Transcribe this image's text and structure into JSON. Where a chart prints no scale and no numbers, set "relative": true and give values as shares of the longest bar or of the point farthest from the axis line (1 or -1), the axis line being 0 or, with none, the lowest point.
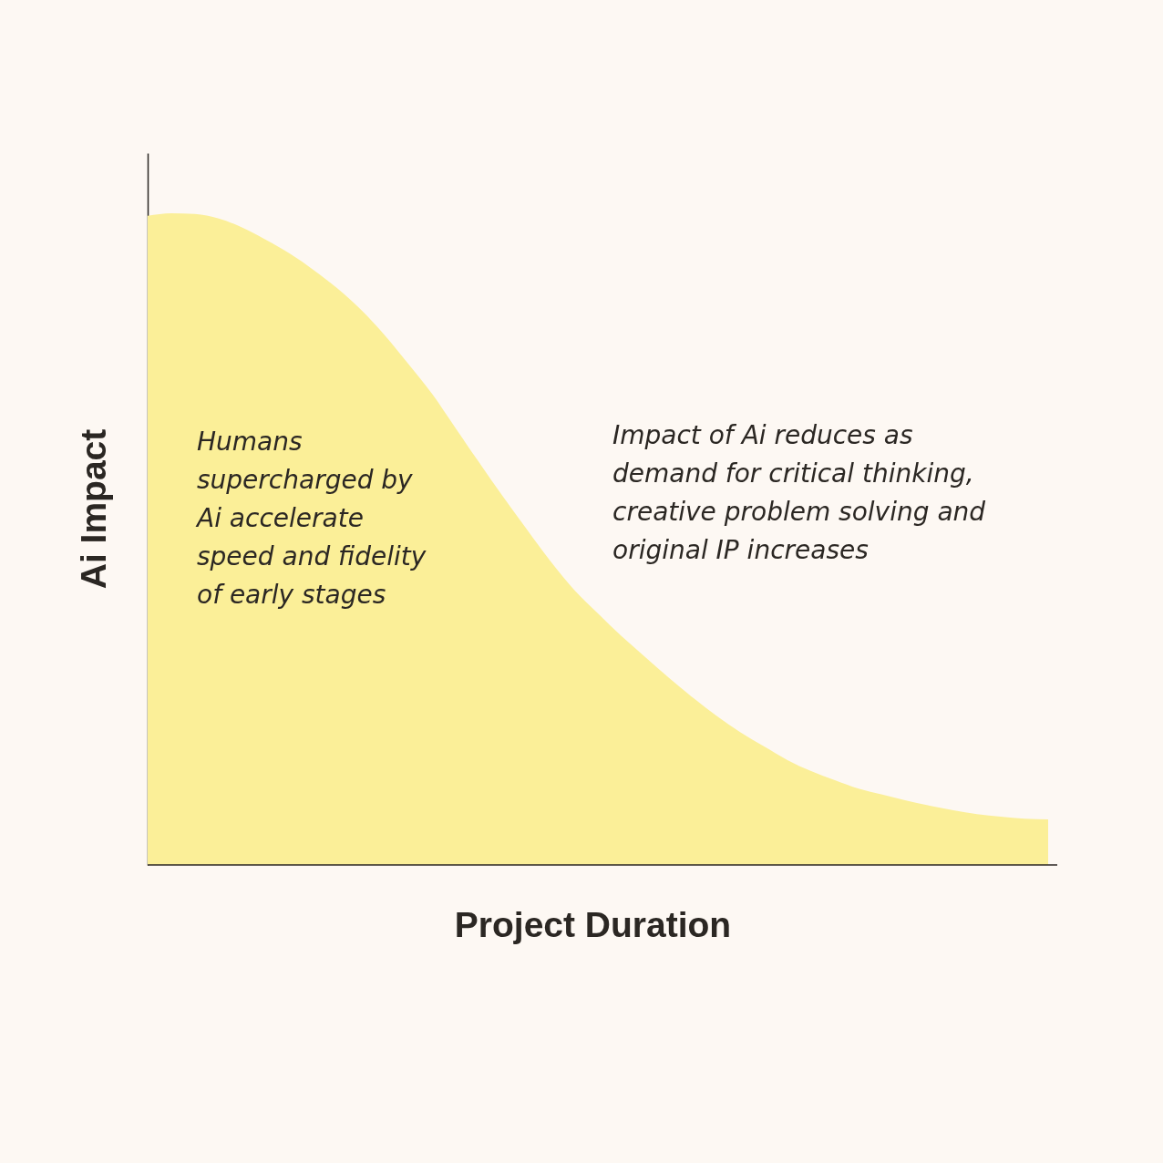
{
  "chart_data": {
    "type": "area",
    "relative": true,
    "xlabel": "Project Duration",
    "ylabel": "Ai Impact",
    "categories": [
      null,
      null,
      null,
      null,
      null,
      null,
      null,
      null,
      null,
      null,
      null,
      null,
      null,
      null,
      null,
      null,
      null,
      null,
      null,
      null,
      null,
      null,
      null,
      null,
      null,
      null,
      null,
      null,
      null,
      null,
      null,
      null,
      null,
      null,
      null,
      null,
      null,
      null,
      null
    ],
    "series": [
      {
        "color": "#fbef98",
        "values": [
          0.996,
          1.0,
          0.999,
          0.992,
          0.978,
          0.959,
          0.938,
          0.913,
          0.885,
          0.852,
          0.813,
          0.769,
          0.723,
          0.67,
          0.617,
          0.565,
          0.515,
          0.466,
          0.422,
          0.386,
          0.351,
          0.319,
          0.287,
          0.257,
          0.229,
          0.204,
          0.182,
          0.161,
          0.144,
          0.13,
          0.117,
          0.108,
          0.099,
          0.091,
          0.084,
          0.078,
          0.074,
          0.071,
          0.07
        ]
      }
    ],
    "annotations": [
      "Humans\nsupercharged by\nAi accelerate\nspeed and fidelity\nof early stages",
      "Impact of Ai reduces as\ndemand for critical thinking,\ncreative problem solving and\noriginal IP increases"
    ]
  }
}
